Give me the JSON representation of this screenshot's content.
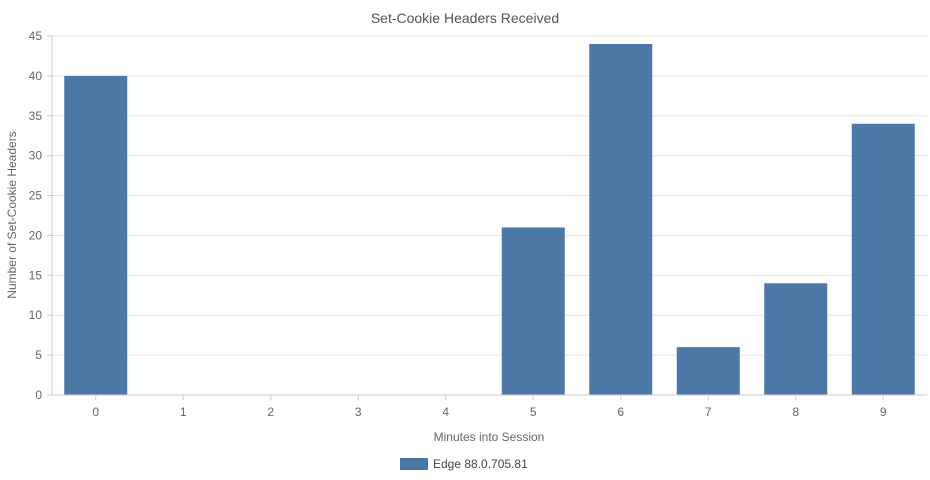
{
  "chart_data": {
    "type": "bar",
    "title": "Set-Cookie Headers Received",
    "xlabel": "Minutes into Session",
    "ylabel": "Number of Set-Cookie Headers",
    "categories": [
      "0",
      "1",
      "2",
      "3",
      "4",
      "5",
      "6",
      "7",
      "8",
      "9"
    ],
    "series": [
      {
        "name": "Edge 88.0.705.81",
        "values": [
          40,
          0,
          0,
          0,
          0,
          21,
          44,
          6,
          14,
          34
        ]
      }
    ],
    "ylim": [
      0,
      45
    ],
    "yticks": [
      "0",
      "5",
      "10",
      "15",
      "20",
      "25",
      "30",
      "35",
      "40",
      "45"
    ],
    "grid": true,
    "legend_position": "bottom-center",
    "colors": {
      "bar": "#4c78a8",
      "grid": "#e6e6e6",
      "axis": "#cccccc"
    }
  }
}
